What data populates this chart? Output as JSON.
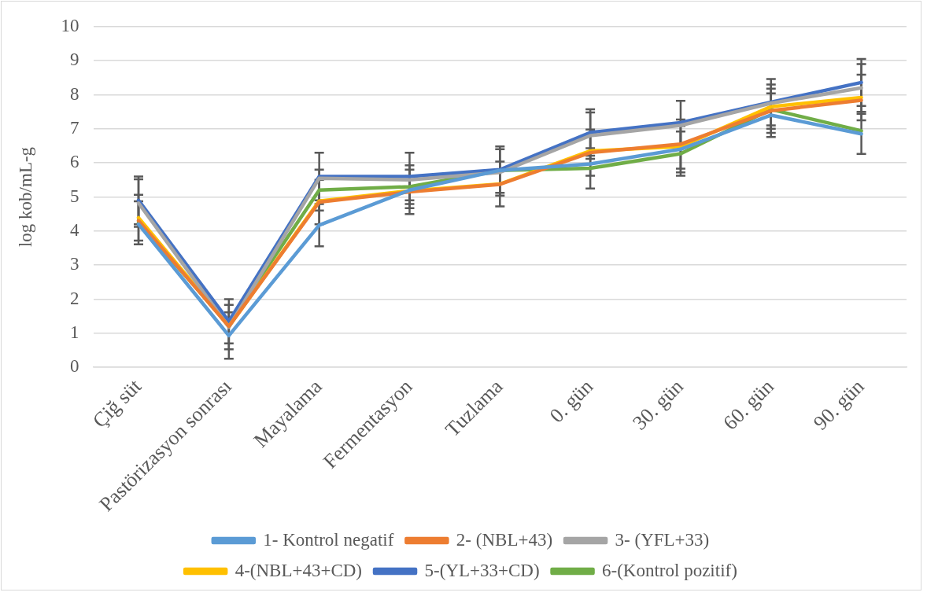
{
  "chart_data": {
    "type": "line",
    "ylabel": "log kob/mL-g",
    "categories": [
      "Çiğ süt",
      "Pastörizasyon sonrası",
      "Mayalama",
      "Fermentasyon",
      "Tuzlama",
      "0. gün",
      "30. gün",
      "60. gün",
      "90. gün"
    ],
    "series": [
      {
        "name": "1- Kontrol negatif",
        "color": "#5b9bd5",
        "values": [
          4.2,
          0.93,
          4.17,
          5.2,
          5.78,
          5.97,
          6.4,
          7.4,
          6.85
        ],
        "errors": [
          null,
          0.68,
          0.62,
          0.41,
          null,
          null,
          0.68,
          0.64,
          0.59
        ]
      },
      {
        "name": "2- (NBL+43)",
        "color": "#ed7d31",
        "values": [
          4.3,
          1.2,
          4.85,
          5.15,
          5.37,
          6.3,
          6.55,
          7.53,
          7.84
        ],
        "errors": [
          null,
          null,
          0.65,
          0.65,
          null,
          0.68,
          0.72,
          0.65,
          null
        ]
      },
      {
        "name": "3- (YFL+33)",
        "color": "#a5a5a5",
        "values": [
          4.82,
          1.18,
          5.55,
          5.5,
          5.72,
          6.8,
          7.1,
          7.75,
          8.2
        ],
        "errors": [
          0.7,
          0.65,
          null,
          null,
          0.68,
          0.68,
          null,
          null,
          0.7
        ]
      },
      {
        "name": "4-(NBL+43+CD)",
        "color": "#ffc000",
        "values": [
          4.39,
          1.2,
          4.88,
          5.18,
          5.38,
          6.35,
          6.48,
          7.65,
          7.92
        ],
        "errors": [
          0.67,
          null,
          null,
          null,
          0.66,
          null,
          null,
          0.65,
          0.67
        ]
      },
      {
        "name": "5-(YL+33+CD)",
        "color": "#4472c4",
        "values": [
          4.9,
          1.35,
          5.6,
          5.6,
          5.8,
          6.89,
          7.18,
          7.78,
          8.36
        ],
        "errors": [
          0.7,
          0.65,
          0.7,
          0.7,
          0.68,
          0.68,
          0.64,
          0.68,
          0.69
        ]
      },
      {
        "name": "6-(Kontrol pozitif)",
        "color": "#70ad47",
        "values": [
          4.24,
          1.25,
          5.2,
          5.3,
          5.78,
          5.84,
          6.27,
          7.57,
          6.94
        ],
        "errors": [
          0.63,
          null,
          0.6,
          0.63,
          null,
          0.59,
          0.65,
          null,
          null
        ]
      }
    ],
    "ylim": [
      0,
      10
    ],
    "yticks": [
      0,
      1,
      2,
      3,
      4,
      5,
      6,
      7,
      8,
      9,
      10
    ],
    "grid": "y",
    "legend": "bottom",
    "marker": "none",
    "line_style": "solid"
  }
}
